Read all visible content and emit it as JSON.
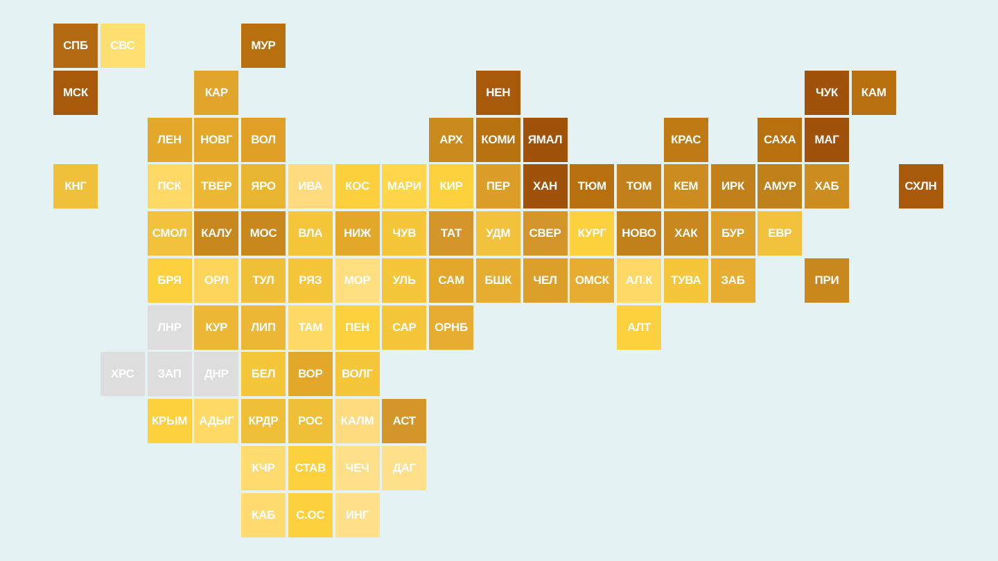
{
  "map": {
    "rows": [
      [
        {
          "label": "СПБ",
          "color": "#b36a12"
        },
        {
          "label": "СВС",
          "color": "#ffdf70"
        },
        null,
        null,
        {
          "label": "МУР",
          "color": "#b8700f"
        }
      ],
      [
        {
          "label": "МСК",
          "color": "#a85a0a"
        },
        null,
        null,
        {
          "label": "КАР",
          "color": "#e0a52a"
        },
        null,
        null,
        null,
        null,
        null,
        {
          "label": "НЕН",
          "color": "#a85a0a"
        },
        null,
        null,
        null,
        null,
        null,
        null,
        {
          "label": "ЧУК",
          "color": "#a0520a"
        },
        {
          "label": "КАМ",
          "color": "#b8700f"
        }
      ],
      [
        null,
        null,
        {
          "label": "ЛЕН",
          "color": "#e3a82a"
        },
        {
          "label": "НОВГ",
          "color": "#e3a82a"
        },
        {
          "label": "ВОЛ",
          "color": "#dfa025"
        },
        null,
        null,
        null,
        {
          "label": "АРХ",
          "color": "#c98a1e"
        },
        {
          "label": "КОМИ",
          "color": "#b8720f"
        },
        {
          "label": "ЯМАЛ",
          "color": "#a0520a"
        },
        null,
        null,
        {
          "label": "КРАС",
          "color": "#c07a15"
        },
        null,
        {
          "label": "САХА",
          "color": "#b8700f"
        },
        {
          "label": "МАГ",
          "color": "#a0520a"
        }
      ],
      [
        {
          "label": "КНГ",
          "color": "#f0c03a"
        },
        null,
        {
          "label": "ПСК",
          "color": "#ffd966"
        },
        {
          "label": "ТВЕР",
          "color": "#ecb836"
        },
        {
          "label": "ЯРО",
          "color": "#e8b530"
        },
        {
          "label": "ИВА",
          "color": "#ffdb80"
        },
        {
          "label": "КОС",
          "color": "#fccf3c"
        },
        {
          "label": "МАРИ",
          "color": "#ffd54a"
        },
        {
          "label": "КИР",
          "color": "#fdd13e"
        },
        {
          "label": "ПЕР",
          "color": "#dc9e28"
        },
        {
          "label": "ХАН",
          "color": "#a0520a"
        },
        {
          "label": "ТЮМ",
          "color": "#b8700f"
        },
        {
          "label": "ТОМ",
          "color": "#c2801a"
        },
        {
          "label": "КЕМ",
          "color": "#cc8c1f"
        },
        {
          "label": "ИРК",
          "color": "#c2801a"
        },
        {
          "label": "АМУР",
          "color": "#c0801a"
        },
        {
          "label": "ХАБ",
          "color": "#cc8c1f"
        },
        null,
        {
          "label": "СХЛН",
          "color": "#a85a0a"
        }
      ],
      [
        null,
        null,
        {
          "label": "СМОЛ",
          "color": "#f2c23c"
        },
        {
          "label": "КАЛУ",
          "color": "#c8881e"
        },
        {
          "label": "МОС",
          "color": "#c8881e"
        },
        {
          "label": "ВЛА",
          "color": "#f6c63a"
        },
        {
          "label": "НИЖ",
          "color": "#e3a82a"
        },
        {
          "label": "ЧУВ",
          "color": "#f6c63a"
        },
        {
          "label": "ТАТ",
          "color": "#d4962a"
        },
        {
          "label": "УДМ",
          "color": "#f2c23c"
        },
        {
          "label": "СВЕР",
          "color": "#d4962a"
        },
        {
          "label": "КУРГ",
          "color": "#fdd13e"
        },
        {
          "label": "НОВО",
          "color": "#c2801a"
        },
        {
          "label": "ХАК",
          "color": "#c8881e"
        },
        {
          "label": "БУР",
          "color": "#dca02a"
        },
        {
          "label": "ЕВР",
          "color": "#f2c23c"
        }
      ],
      [
        null,
        null,
        {
          "label": "БРЯ",
          "color": "#fdd13e"
        },
        {
          "label": "ОРЛ",
          "color": "#fdd55a"
        },
        {
          "label": "ТУЛ",
          "color": "#f0bf38"
        },
        {
          "label": "РЯЗ",
          "color": "#f6c63a"
        },
        {
          "label": "МОР",
          "color": "#ffdf80"
        },
        {
          "label": "УЛЬ",
          "color": "#f6c63a"
        },
        {
          "label": "САМ",
          "color": "#e3a82a"
        },
        {
          "label": "БШК",
          "color": "#e6ad30"
        },
        {
          "label": "ЧЕЛ",
          "color": "#dca02a"
        },
        {
          "label": "ОМСК",
          "color": "#e6ad30"
        },
        {
          "label": "АЛ.К",
          "color": "#ffd966"
        },
        {
          "label": "ТУВА",
          "color": "#f6c63a"
        },
        {
          "label": "ЗАБ",
          "color": "#e6ad30"
        },
        null,
        {
          "label": "ПРИ",
          "color": "#c8881e"
        }
      ],
      [
        null,
        null,
        {
          "label": "ЛНР",
          "color": "#dddddd"
        },
        {
          "label": "КУР",
          "color": "#ecb836"
        },
        {
          "label": "ЛИП",
          "color": "#ecb836"
        },
        {
          "label": "ТАМ",
          "color": "#ffd966"
        },
        {
          "label": "ПЕН",
          "color": "#fdd13e"
        },
        {
          "label": "САР",
          "color": "#f6c63a"
        },
        {
          "label": "ОРНБ",
          "color": "#e6ad30"
        },
        null,
        null,
        null,
        {
          "label": "АЛТ",
          "color": "#fdd13e"
        }
      ],
      [
        null,
        {
          "label": "ХРС",
          "color": "#dddddd"
        },
        {
          "label": "ЗАП",
          "color": "#dddddd"
        },
        {
          "label": "ДНР",
          "color": "#dddddd"
        },
        {
          "label": "БЕЛ",
          "color": "#f6c63a"
        },
        {
          "label": "ВОР",
          "color": "#e3a82a"
        },
        {
          "label": "ВОЛГ",
          "color": "#f6c63a"
        }
      ],
      [
        null,
        null,
        {
          "label": "КРЫМ",
          "color": "#fdd13e"
        },
        {
          "label": "АДЫГ",
          "color": "#ffd966"
        },
        {
          "label": "КРДР",
          "color": "#f0bf38"
        },
        {
          "label": "РОС",
          "color": "#f0bf38"
        },
        {
          "label": "КАЛМ",
          "color": "#ffdb80"
        },
        {
          "label": "АСТ",
          "color": "#d4962a"
        }
      ],
      [
        null,
        null,
        null,
        null,
        {
          "label": "КЧР",
          "color": "#ffdb70"
        },
        {
          "label": "СТАВ",
          "color": "#fdd13e"
        },
        {
          "label": "ЧЕЧ",
          "color": "#ffe08a"
        },
        {
          "label": "ДАГ",
          "color": "#ffe08a"
        }
      ],
      [
        null,
        null,
        null,
        null,
        {
          "label": "КАБ",
          "color": "#ffdb70"
        },
        {
          "label": "С.ОС",
          "color": "#fdd13e"
        },
        {
          "label": "ИНГ",
          "color": "#ffe08a"
        }
      ]
    ]
  }
}
